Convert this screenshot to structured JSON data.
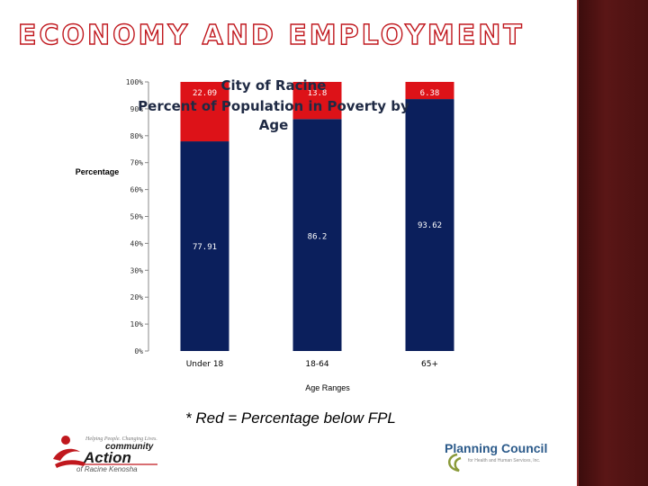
{
  "slide": {
    "title": "ECONOMY AND EMPLOYMENT",
    "footnote": "* Red = Percentage below FPL",
    "colors": {
      "title_outline": "#c0181e",
      "side_panel": "#4a1111"
    }
  },
  "logos": {
    "community_action": {
      "tagline": "Helping People. Changing Lives.",
      "name_line1": "community",
      "name_line2": "Action",
      "name_line3": "of Racine Kenosha"
    },
    "planning_council": {
      "name": "Planning Council",
      "subtitle": "for Health and Human Services, Inc."
    }
  },
  "chart_data": {
    "type": "bar",
    "stacked": true,
    "title": [
      "City of Racine",
      "Percent of Population in Poverty by",
      "Age"
    ],
    "xlabel": "Age Ranges",
    "ylabel": "Percentage",
    "categories": [
      "Under 18",
      "18-64",
      "65+"
    ],
    "ylim": [
      0,
      100
    ],
    "yticks": [
      "0%",
      "10%",
      "20%",
      "30%",
      "40%",
      "50%",
      "60%",
      "70%",
      "80%",
      "90%",
      "100%"
    ],
    "series": [
      {
        "values": [
          77.91,
          86.2,
          93.62
        ],
        "labels": [
          "77.91",
          "86.2",
          "93.62"
        ],
        "color": "#0b1f5c"
      },
      {
        "values": [
          22.09,
          13.8,
          6.38
        ],
        "labels": [
          "22.09",
          "13.8",
          "6.38"
        ],
        "color": "#dd1218"
      }
    ],
    "grid": false,
    "legend": "none"
  }
}
